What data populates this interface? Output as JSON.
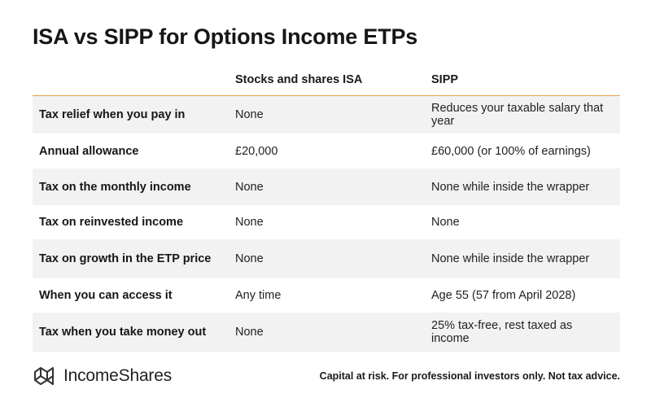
{
  "title": "ISA vs SIPP for Options Income ETPs",
  "table": {
    "headers": [
      "",
      "Stocks and shares ISA",
      "SIPP"
    ],
    "rows": [
      {
        "label": "Tax relief when you pay in",
        "isa": "None",
        "sipp": "Reduces your taxable salary that year"
      },
      {
        "label": "Annual allowance",
        "isa": "£20,000",
        "sipp": "£60,000 (or 100% of earnings)"
      },
      {
        "label": "Tax on the monthly income",
        "isa": "None",
        "sipp": "None while inside the wrapper"
      },
      {
        "label": "Tax on reinvested income",
        "isa": "None",
        "sipp": "None"
      },
      {
        "label": "Tax on growth in the ETP price",
        "isa": "None",
        "sipp": "None while inside the wrapper"
      },
      {
        "label": "When you can access it",
        "isa": "Any time",
        "sipp": "Age 55 (57 from April 2028)"
      },
      {
        "label": "Tax when you take money out",
        "isa": "None",
        "sipp": "25% tax-free, rest taxed as income"
      }
    ]
  },
  "footer": {
    "brand": "IncomeShares",
    "logo_icon": "incomeshares-logo-icon",
    "disclaimer": "Capital at risk. For professional investors only. Not tax advice."
  },
  "colors": {
    "header_rule": "#e8a24a",
    "row_shade": "#f2f2f2"
  }
}
